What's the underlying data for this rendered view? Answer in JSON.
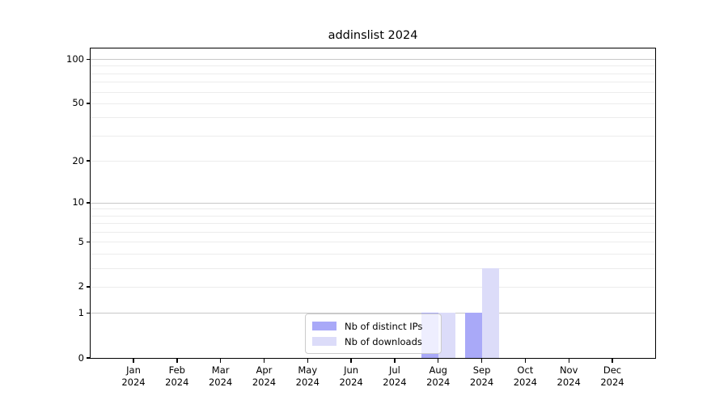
{
  "chart_data": {
    "type": "bar",
    "title": "addinslist 2024",
    "xlabel": "",
    "ylabel": "",
    "yscale": "log1p",
    "ylim": [
      0,
      118
    ],
    "grid": "on",
    "legend_position": "lower center",
    "categories": [
      {
        "line1": "Jan",
        "line2": "2024"
      },
      {
        "line1": "Feb",
        "line2": "2024"
      },
      {
        "line1": "Mar",
        "line2": "2024"
      },
      {
        "line1": "Apr",
        "line2": "2024"
      },
      {
        "line1": "May",
        "line2": "2024"
      },
      {
        "line1": "Jun",
        "line2": "2024"
      },
      {
        "line1": "Jul",
        "line2": "2024"
      },
      {
        "line1": "Aug",
        "line2": "2024"
      },
      {
        "line1": "Sep",
        "line2": "2024"
      },
      {
        "line1": "Oct",
        "line2": "2024"
      },
      {
        "line1": "Nov",
        "line2": "2024"
      },
      {
        "line1": "Dec",
        "line2": "2024"
      }
    ],
    "series": [
      {
        "name": "Nb of distinct IPs",
        "color": "#a9a9f8",
        "values": [
          0,
          0,
          0,
          0,
          0,
          0,
          0,
          1,
          1,
          0,
          0,
          0
        ]
      },
      {
        "name": "Nb of downloads",
        "color": "#dcdcf9",
        "values": [
          0,
          0,
          0,
          0,
          0,
          0,
          0,
          1,
          3,
          0,
          0,
          0
        ]
      }
    ],
    "y_ticks": [
      "100",
      "50",
      "20",
      "10",
      "5",
      "2",
      "1",
      "0"
    ],
    "y_major_gridlines": [
      1,
      10,
      100
    ],
    "y_minor_gridlines": [
      2,
      3,
      4,
      5,
      6,
      7,
      8,
      9,
      20,
      30,
      40,
      50,
      60,
      70,
      80,
      90
    ],
    "colors": {
      "major_grid": "#c8c8c8",
      "minor_grid": "#ececec",
      "spine": "#000000",
      "text": "#000000",
      "background": "#ffffff"
    }
  }
}
